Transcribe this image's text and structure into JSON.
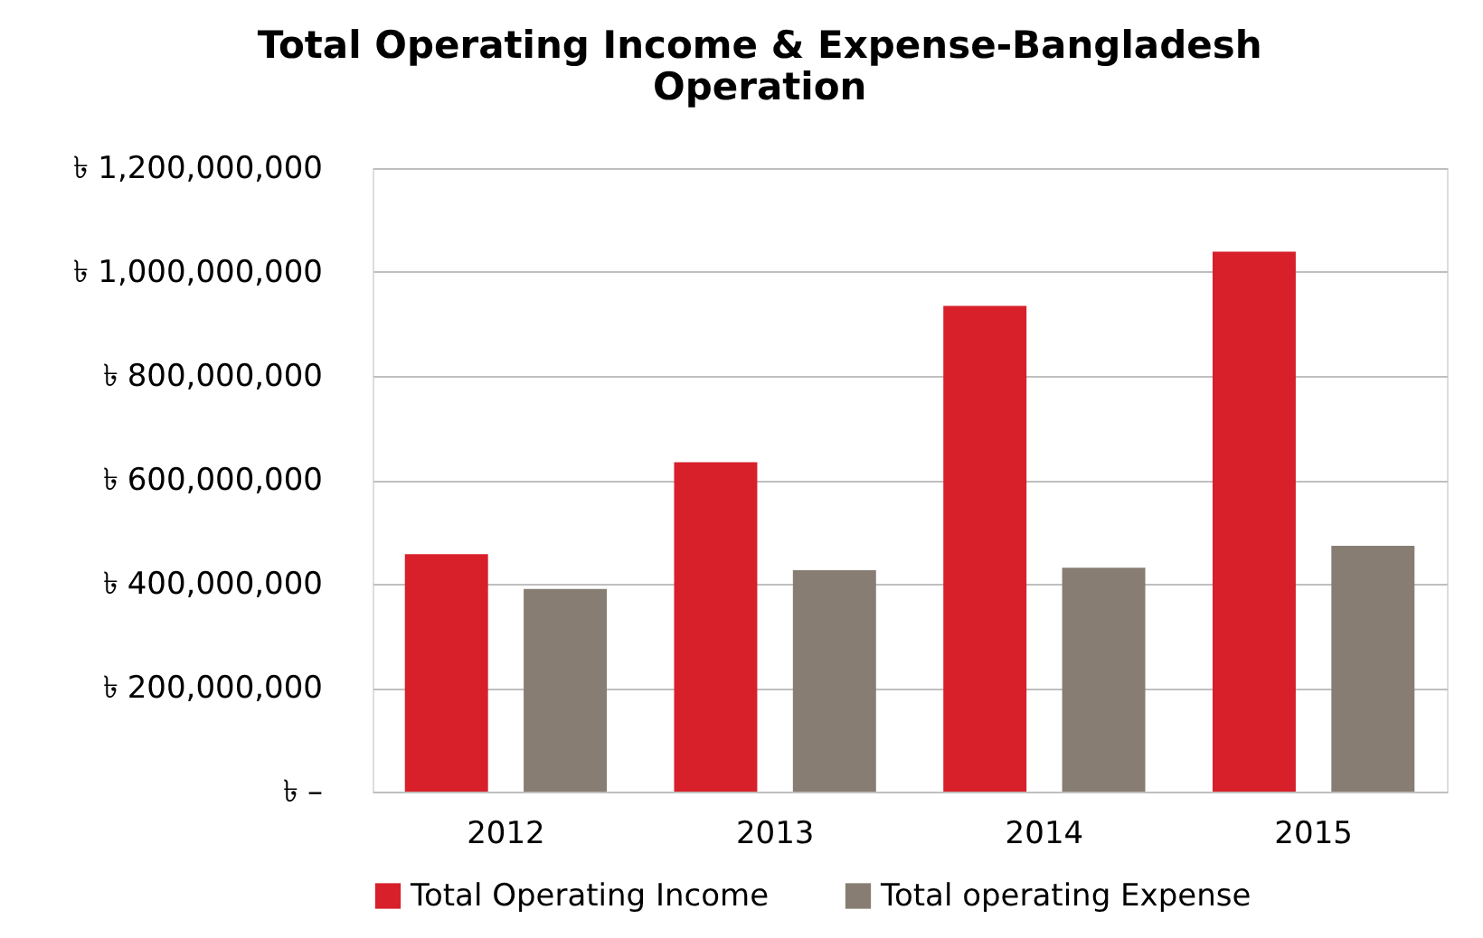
{
  "chart_data": {
    "type": "bar",
    "title": "Total Operating Income & Expense-Bangladesh Operation",
    "categories": [
      "2012",
      "2013",
      "2014",
      "2015"
    ],
    "series": [
      {
        "name": "Total Operating Income",
        "color": "#d7202a",
        "values": [
          457000000,
          634000000,
          935000000,
          1039000000
        ]
      },
      {
        "name": "Total operating Expense",
        "color": "#877d72",
        "values": [
          390000000,
          426000000,
          431000000,
          473000000
        ]
      }
    ],
    "ylim": [
      0,
      1200000000
    ],
    "yticks": [
      {
        "value": 0,
        "label": "৳ –"
      },
      {
        "value": 200000000,
        "label": "৳ 200,000,000"
      },
      {
        "value": 400000000,
        "label": "৳ 400,000,000"
      },
      {
        "value": 600000000,
        "label": "৳ 600,000,000"
      },
      {
        "value": 800000000,
        "label": "৳ 800,000,000"
      },
      {
        "value": 1000000000,
        "label": "৳ 1,000,000,000"
      },
      {
        "value": 1200000000,
        "label": "৳ 1,200,000,000"
      }
    ],
    "grid": "y",
    "legend": "bottom"
  }
}
